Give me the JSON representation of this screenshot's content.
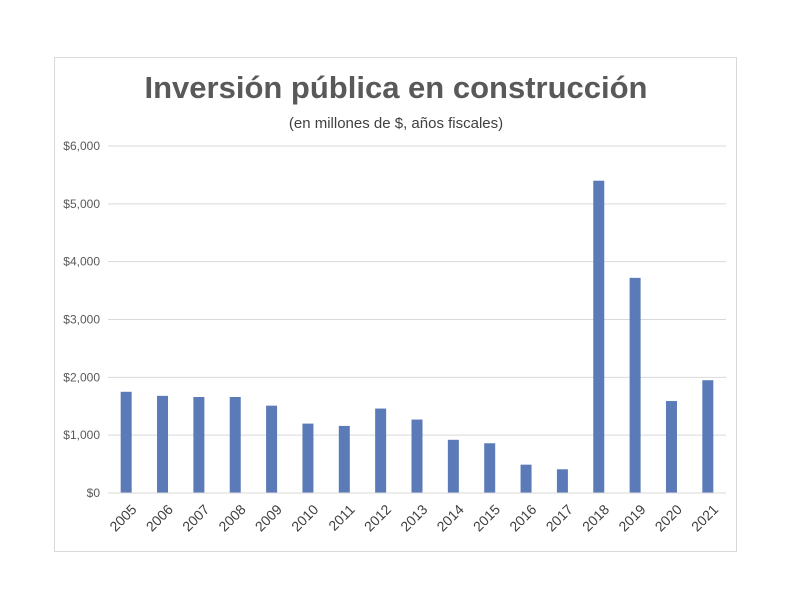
{
  "chart_data": {
    "type": "bar",
    "title": "Inversión pública en construcción",
    "subtitle": "(en millones de $, años fiscales)",
    "categories": [
      "2005",
      "2006",
      "2007",
      "2008",
      "2009",
      "2010",
      "2011",
      "2012",
      "2013",
      "2014",
      "2015",
      "2016",
      "2017",
      "2018",
      "2019",
      "2020",
      "2021"
    ],
    "values": [
      1750,
      1680,
      1660,
      1660,
      1510,
      1200,
      1160,
      1460,
      1270,
      920,
      860,
      490,
      410,
      5400,
      3720,
      1590,
      1950
    ],
    "yticks": [
      "$0",
      "$1,000",
      "$2,000",
      "$3,000",
      "$4,000",
      "$5,000",
      "$6,000"
    ],
    "ylim": [
      0,
      6000
    ],
    "grid": true,
    "legend": "none",
    "bar_color": "#5b7ab8",
    "grid_color": "#d9d9d9"
  }
}
